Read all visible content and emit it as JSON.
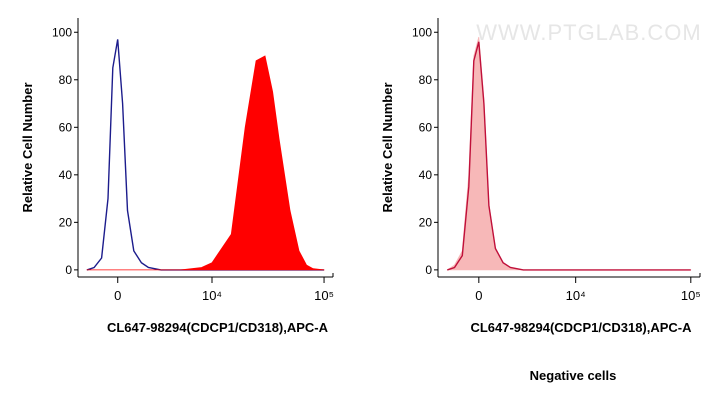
{
  "chart_data": [
    {
      "type": "histogram-overlay",
      "x_label": "CL647-98294(CDCP1/CD318),APC-A",
      "y_label": "Relative Cell Number",
      "xscale": "arcsinh",
      "xlim": [
        -2700,
        120000
      ],
      "xticks": [
        0,
        {
          "value": 10000,
          "label": "10⁴"
        },
        {
          "value": 100000,
          "label": "10⁵"
        }
      ],
      "ylim": [
        -3,
        106
      ],
      "yticks": [
        0,
        20,
        40,
        60,
        80,
        100
      ],
      "x": [
        -2000,
        -1500,
        -1000,
        -600,
        -300,
        0,
        300,
        600,
        1000,
        1500,
        2000,
        3000,
        5000,
        8000,
        10000,
        15000,
        20000,
        25000,
        30000,
        35000,
        40000,
        50000,
        60000,
        70000,
        80000,
        100000
      ],
      "series": [
        {
          "color": "#1c1c8c",
          "fill": false,
          "values": [
            0,
            1,
            5,
            30,
            85,
            97,
            70,
            25,
            8,
            3,
            1,
            0,
            0,
            0,
            0,
            0,
            0,
            0,
            0,
            0,
            0,
            0,
            0,
            0,
            0,
            0
          ]
        },
        {
          "color": "#ff0000",
          "fill": true,
          "values": [
            0,
            0,
            0,
            0,
            0,
            0,
            0,
            0,
            0,
            0,
            0,
            0,
            0,
            1,
            3,
            15,
            60,
            88,
            90,
            75,
            55,
            25,
            8,
            2,
            0.5,
            0
          ]
        }
      ]
    },
    {
      "type": "histogram-overlay",
      "x_label": "CL647-98294(CDCP1/CD318),APC-A",
      "y_label": "Relative Cell Number",
      "caption": "Negative cells",
      "watermark": "WWW.PTGLAB.COM",
      "xscale": "arcsinh",
      "xlim": [
        -2700,
        120000
      ],
      "xticks": [
        0,
        {
          "value": 10000,
          "label": "10⁴"
        },
        {
          "value": 100000,
          "label": "10⁵"
        }
      ],
      "ylim": [
        -3,
        106
      ],
      "yticks": [
        0,
        20,
        40,
        60,
        80,
        100
      ],
      "x": [
        -2000,
        -1500,
        -1000,
        -600,
        -300,
        0,
        300,
        600,
        1000,
        1500,
        2000,
        3000,
        5000,
        8000,
        10000,
        15000,
        20000,
        25000,
        30000,
        35000,
        40000,
        50000,
        60000,
        70000,
        80000,
        100000
      ],
      "series": [
        {
          "color": "#f7b8b8",
          "fill": true,
          "values": [
            0,
            2,
            8,
            40,
            90,
            98,
            72,
            28,
            9,
            3,
            1,
            0,
            0,
            0,
            0,
            0,
            0,
            0,
            0,
            0,
            0,
            0,
            0,
            0,
            0,
            0
          ]
        },
        {
          "color": "#c0103a",
          "fill": false,
          "values": [
            0,
            1,
            6,
            35,
            88,
            96,
            70,
            27,
            9,
            3,
            1,
            0,
            0,
            0,
            0,
            0,
            0,
            0,
            0,
            0,
            0,
            0,
            0,
            0,
            0,
            0
          ]
        }
      ]
    }
  ]
}
